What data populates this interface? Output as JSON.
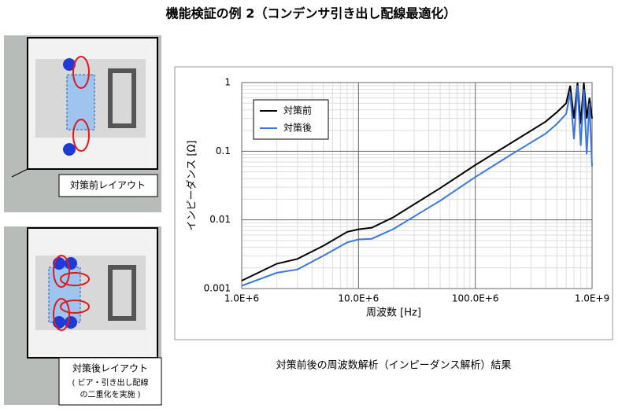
{
  "title": "機能検証の例 2（コンデンサ引き出し配線最適化）",
  "layouts": [
    {
      "label": "対策前レイアウト"
    },
    {
      "label": "対策後レイアウト",
      "note": [
        "( ビア・引き出し配線",
        "の二重化を実施 )"
      ]
    }
  ],
  "caption": "対策前後の周波数解析（インピーダンス解析）結果",
  "chart_data": {
    "type": "line",
    "x_label": "周波数 [Hz]",
    "y_label": "インピーダンス [Ω]",
    "x": [
      1000000,
      2000000,
      3000000,
      5000000,
      8000000,
      10000000,
      13000000,
      20000000,
      50000000,
      100000000,
      200000000,
      400000000,
      500000000,
      600000000,
      650000000,
      700000000,
      750000000,
      800000000,
      850000000,
      900000000,
      950000000,
      1000000000
    ],
    "series": [
      {
        "name": "対策前",
        "color": "#000000",
        "values": [
          0.0013,
          0.0023,
          0.0027,
          0.0042,
          0.0067,
          0.0073,
          0.0077,
          0.011,
          0.029,
          0.063,
          0.13,
          0.27,
          0.37,
          0.5,
          0.9,
          0.3,
          1,
          0.25,
          1,
          0.3,
          0.6,
          0.3
        ]
      },
      {
        "name": "対策後",
        "color": "#3a78e0",
        "values": [
          0.0011,
          0.0017,
          0.0019,
          0.003,
          0.0047,
          0.0052,
          0.0053,
          0.0074,
          0.019,
          0.042,
          0.088,
          0.18,
          0.25,
          0.35,
          0.7,
          0.15,
          0.9,
          0.12,
          0.8,
          0.09,
          0.5,
          0.06
        ]
      }
    ],
    "xlim": [
      1000000,
      1000000000
    ],
    "xticks": [
      {
        "value": 1000000,
        "label": "1.0E+6"
      },
      {
        "value": 10000000,
        "label": "10.0E+6"
      },
      {
        "value": 100000000,
        "label": "100.0E+6"
      },
      {
        "value": 1000000000,
        "label": "1.0E+9"
      }
    ],
    "ylim": [
      0.001,
      1
    ],
    "yticks": [
      0.001,
      0.01,
      0.1,
      1
    ],
    "xscale": "log",
    "yscale": "log",
    "grid": true,
    "legend": "top-left"
  }
}
